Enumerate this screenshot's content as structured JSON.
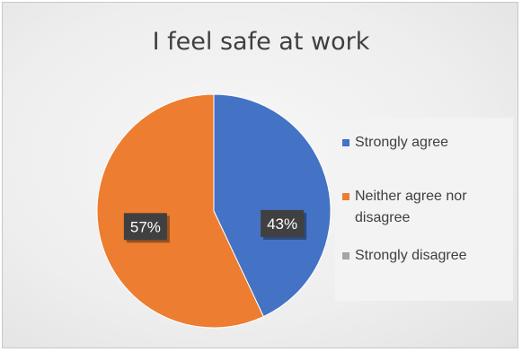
{
  "chart_data": {
    "type": "pie",
    "title": "I feel safe at work",
    "categories": [
      "Strongly agree",
      "Neither agree nor disagree",
      "Strongly disagree"
    ],
    "values": [
      43,
      57,
      0
    ],
    "data_labels": [
      "43%",
      "57%",
      ""
    ],
    "colors": [
      "#4472c4",
      "#ed7d31",
      "#a5a5a5"
    ],
    "legend_position": "right"
  }
}
